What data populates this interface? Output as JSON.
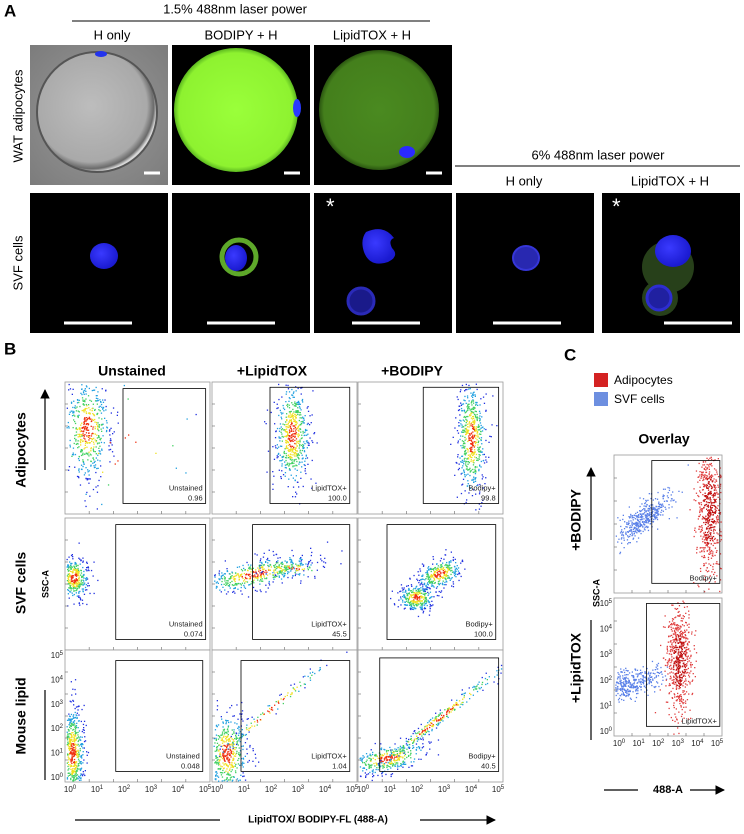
{
  "panel_a": {
    "label": "A",
    "asterisk": "*",
    "group1": {
      "title": "1.5% 488nm laser power",
      "columns": [
        "H only",
        "BODIPY + H",
        "LipidTOX + H"
      ]
    },
    "group2": {
      "title": "6% 488nm laser power",
      "columns": [
        "H only",
        "LipidTOX + H"
      ]
    },
    "rows": [
      "WAT adipocytes",
      "SVF cells"
    ]
  },
  "panel_b": {
    "label": "B",
    "columns": [
      "Unstained",
      "+LipidTOX",
      "+BODIPY"
    ],
    "rows": [
      "Adipocytes",
      "SVF cells",
      "Mouse lipid"
    ],
    "y_axis_label": "SSC-A",
    "x_axis_label": "LipidTOX/ BODIPY-FL (488-A)",
    "gates": [
      [
        {
          "name": "Unstained",
          "value": "0.96"
        },
        {
          "name": "LipidTOX+",
          "value": "100.0"
        },
        {
          "name": "Bodipy+",
          "value": "99.8"
        }
      ],
      [
        {
          "name": "Unstained",
          "value": "0.074"
        },
        {
          "name": "LipidTOX+",
          "value": "45.5"
        },
        {
          "name": "Bodipy+",
          "value": "100.0"
        }
      ],
      [
        {
          "name": "Unstained",
          "value": "0.048"
        },
        {
          "name": "LipidTOX+",
          "value": "1.04"
        },
        {
          "name": "Bodipy+",
          "value": "40.5"
        }
      ]
    ]
  },
  "panel_c": {
    "label": "C",
    "title": "Overlay",
    "legend": [
      "Adipocytes",
      "SVF cells"
    ],
    "rows": [
      "+BODIPY",
      "+LipidTOX"
    ],
    "gates": [
      "Bodipy+",
      "LipidTOX+"
    ],
    "y_axis_label": "SSC-A",
    "x_axis_label": "488-A"
  },
  "log_axis": {
    "base": "10",
    "exponents": [
      "0",
      "1",
      "2",
      "3",
      "4",
      "5"
    ]
  }
}
